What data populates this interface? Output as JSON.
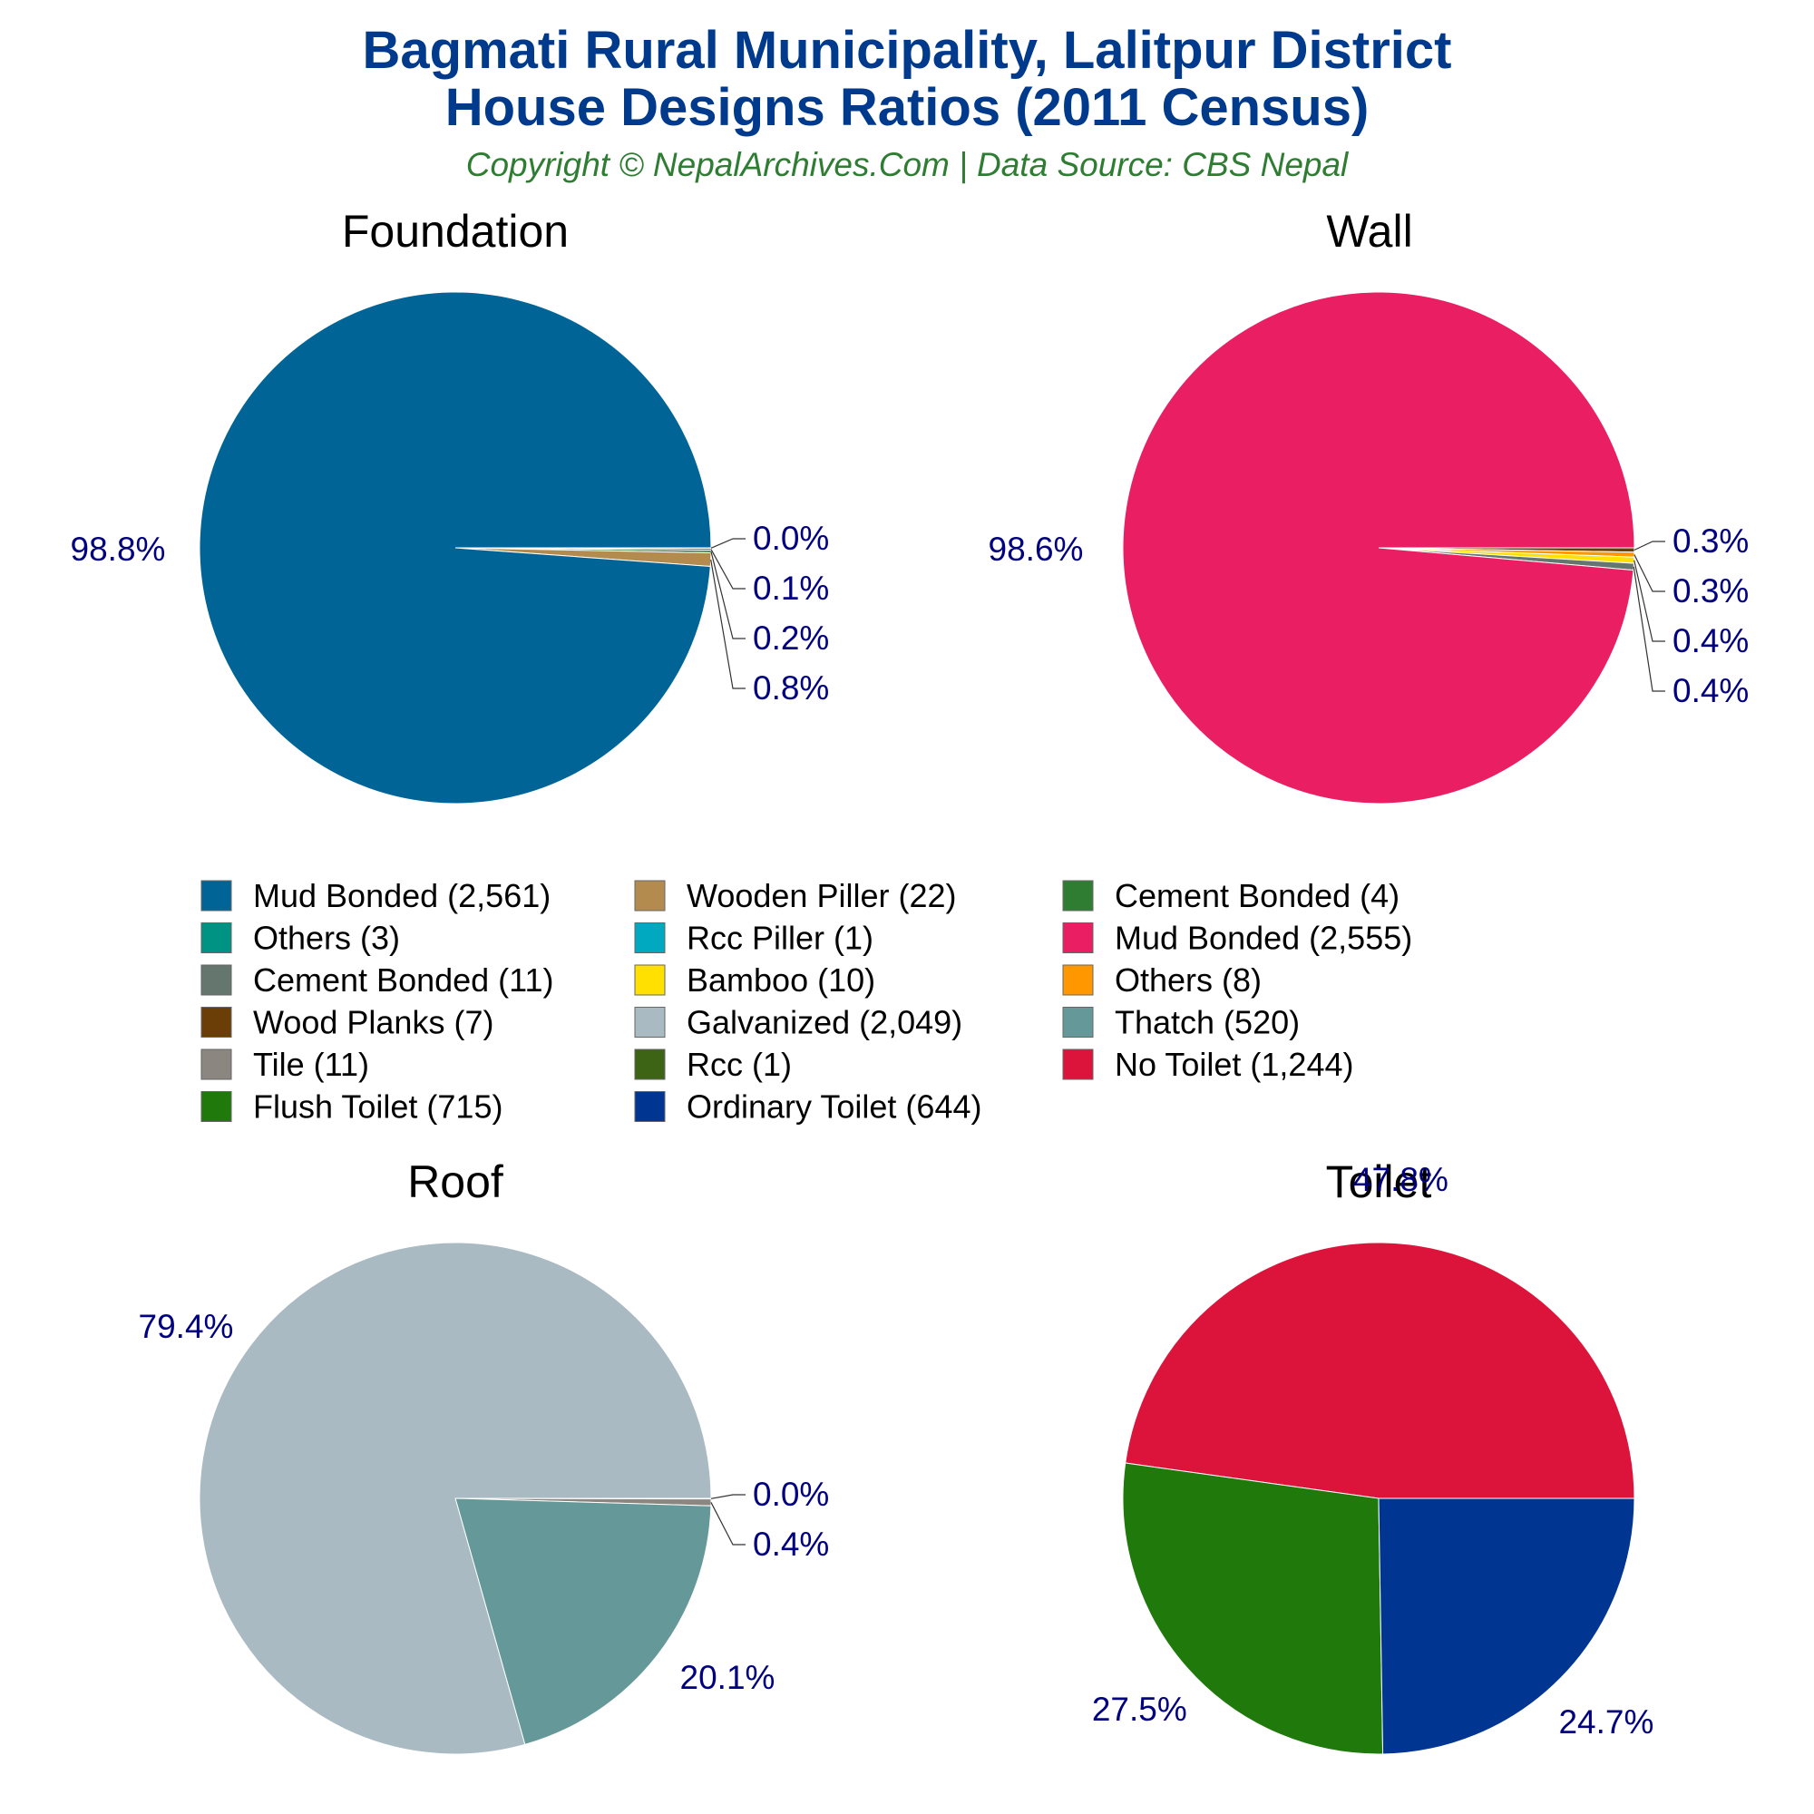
{
  "title_line1": "Bagmati Rural Municipality, Lalitpur District",
  "title_line2": "House Designs Ratios (2011 Census)",
  "subtitle": "Copyright © NepalArchives.Com | Data Source: CBS Nepal",
  "chart_data": [
    {
      "type": "pie",
      "title": "Foundation",
      "slices": [
        {
          "name": "Mud Bonded",
          "value": 2561,
          "label": "98.8%",
          "color": "#006596"
        },
        {
          "name": "Wooden Piller",
          "value": 22,
          "label": "0.8%",
          "color": "#b38b4f"
        },
        {
          "name": "Cement Bonded",
          "value": 4,
          "label": "0.2%",
          "color": "#2e7d32"
        },
        {
          "name": "Others",
          "value": 3,
          "label": "0.1%",
          "color": "#009384"
        },
        {
          "name": "Rcc Piller",
          "value": 1,
          "label": "0.0%",
          "color": "#00a8c0"
        }
      ]
    },
    {
      "type": "pie",
      "title": "Wall",
      "slices": [
        {
          "name": "Mud Bonded",
          "value": 2555,
          "label": "98.6%",
          "color": "#e91e63"
        },
        {
          "name": "Cement Bonded",
          "value": 11,
          "label": "0.4%",
          "color": "#64766e"
        },
        {
          "name": "Bamboo",
          "value": 10,
          "label": "0.4%",
          "color": "#ffe000"
        },
        {
          "name": "Others",
          "value": 8,
          "label": "0.3%",
          "color": "#ff9800"
        },
        {
          "name": "Wood Planks",
          "value": 7,
          "label": "0.3%",
          "color": "#6b3e07"
        }
      ]
    },
    {
      "type": "pie",
      "title": "Roof",
      "slices": [
        {
          "name": "Galvanized",
          "value": 2049,
          "label": "79.4%",
          "color": "#a9bac3"
        },
        {
          "name": "Thatch",
          "value": 520,
          "label": "20.1%",
          "color": "#659898"
        },
        {
          "name": "Tile",
          "value": 11,
          "label": "0.4%",
          "color": "#8b8680"
        },
        {
          "name": "Rcc",
          "value": 1,
          "label": "0.0%",
          "color": "#3d6314"
        }
      ]
    },
    {
      "type": "pie",
      "title": "Toilet",
      "slices": [
        {
          "name": "No Toilet",
          "value": 1244,
          "label": "47.8%",
          "color": "#dc143c"
        },
        {
          "name": "Flush Toilet",
          "value": 715,
          "label": "27.5%",
          "color": "#1f7a0b"
        },
        {
          "name": "Ordinary Toilet",
          "value": 644,
          "label": "24.7%",
          "color": "#003591"
        }
      ]
    }
  ],
  "legend": [
    {
      "text": "Mud Bonded (2,561)",
      "color": "#006596"
    },
    {
      "text": "Others (3)",
      "color": "#009384"
    },
    {
      "text": "Cement Bonded (11)",
      "color": "#64766e"
    },
    {
      "text": "Wood Planks (7)",
      "color": "#6b3e07"
    },
    {
      "text": "Tile (11)",
      "color": "#8b8680"
    },
    {
      "text": "Flush Toilet (715)",
      "color": "#1f7a0b"
    },
    {
      "text": "Wooden Piller (22)",
      "color": "#b38b4f"
    },
    {
      "text": "Rcc Piller (1)",
      "color": "#00a8c0"
    },
    {
      "text": "Bamboo (10)",
      "color": "#ffe000"
    },
    {
      "text": "Galvanized (2,049)",
      "color": "#a9bac3"
    },
    {
      "text": "Rcc (1)",
      "color": "#3d6314"
    },
    {
      "text": "Ordinary Toilet (644)",
      "color": "#003591"
    },
    {
      "text": "Cement Bonded (4)",
      "color": "#2e7d32"
    },
    {
      "text": "Mud Bonded (2,555)",
      "color": "#e91e63"
    },
    {
      "text": "Others (8)",
      "color": "#ff9800"
    },
    {
      "text": "Thatch (520)",
      "color": "#659898"
    },
    {
      "text": "No Toilet (1,244)",
      "color": "#dc143c"
    }
  ]
}
